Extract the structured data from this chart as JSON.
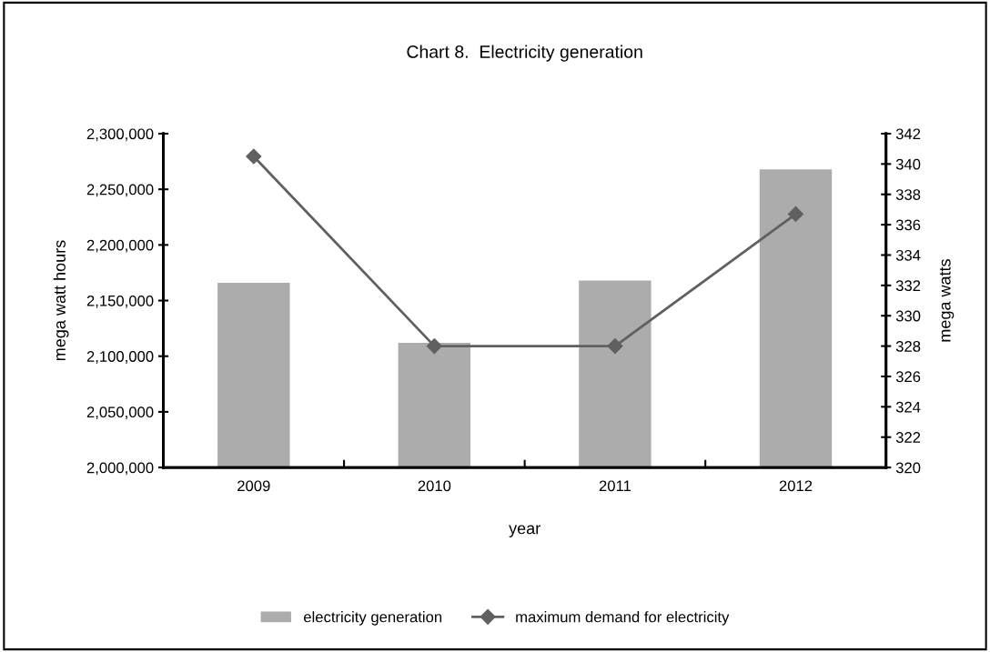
{
  "chart_data": {
    "type": "bar",
    "title": "Chart 8.  Electricity generation",
    "xlabel": "year",
    "ylabel": "mega watt hours",
    "y2label": "mega watts",
    "categories": [
      "2009",
      "2010",
      "2011",
      "2012"
    ],
    "series": [
      {
        "name": "electricity generation",
        "color": "#acacac",
        "values": [
          2166000,
          2112000,
          2168000,
          2268000
        ]
      },
      {
        "name": "maximum demand for electricity",
        "type": "line",
        "axis": "y2",
        "color": "#606060",
        "marker": "diamond",
        "values": [
          340.5,
          328,
          328,
          336.7
        ]
      }
    ],
    "ylim": [
      2000000,
      2300000
    ],
    "yticks": [
      {
        "value": 2000000,
        "label": "2,000,000"
      },
      {
        "value": 2050000,
        "label": "2,050,000"
      },
      {
        "value": 2100000,
        "label": "2,100,000"
      },
      {
        "value": 2150000,
        "label": "2,150,000"
      },
      {
        "value": 2200000,
        "label": "2,200,000"
      },
      {
        "value": 2250000,
        "label": "2,250,000"
      },
      {
        "value": 2300000,
        "label": "2,300,000"
      }
    ],
    "y2lim": [
      320,
      342
    ],
    "y2ticks": [
      320,
      322,
      324,
      326,
      328,
      330,
      332,
      334,
      336,
      338,
      340,
      342
    ],
    "grid": false,
    "legend": "bottom"
  }
}
